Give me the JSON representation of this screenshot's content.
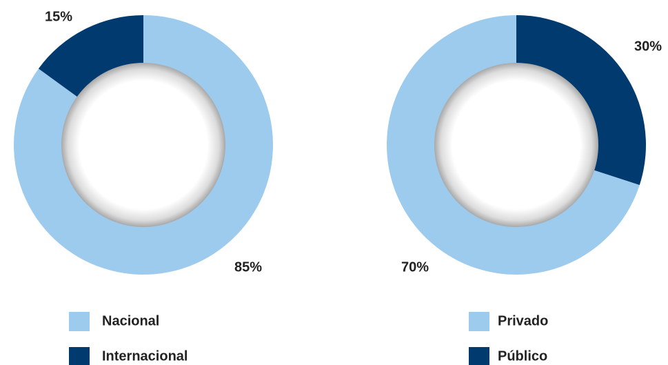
{
  "chart_data": [
    {
      "type": "donut",
      "direction": "clockwise",
      "labels": [
        "Nacional",
        "Internacional"
      ],
      "values": [
        85,
        15
      ],
      "value_labels": [
        "85%",
        "15%"
      ],
      "colors": [
        "#9dcbee",
        "#003a6e"
      ]
    },
    {
      "type": "donut",
      "direction": "counterclockwise",
      "labels": [
        "Privado",
        "Público"
      ],
      "values": [
        70,
        30
      ],
      "value_labels": [
        "70%",
        "30%"
      ],
      "colors": [
        "#9dcbee",
        "#003a6e"
      ]
    }
  ]
}
